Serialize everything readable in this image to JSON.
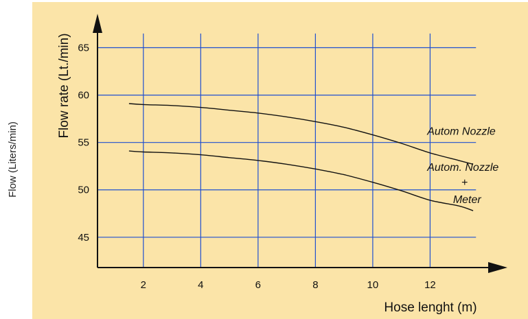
{
  "outer_ylabel": "Flow (Liters/min)",
  "chart_data": {
    "type": "line",
    "xlabel": "Hose lenght (m)",
    "ylabel": "Flow rate (Lt./min)",
    "xlim": [
      0.4,
      14.6
    ],
    "ylim": [
      41.8,
      67.5
    ],
    "x_ticks": [
      2,
      4,
      6,
      8,
      10,
      12
    ],
    "y_ticks": [
      45,
      50,
      55,
      60,
      65
    ],
    "grid": true,
    "grid_color": "#1f4fd0",
    "line_color": "#111111",
    "background": "#fbe4a8",
    "series": [
      {
        "x": [
          1.5,
          2,
          3,
          4,
          5,
          6,
          7,
          8,
          9,
          10,
          11,
          12,
          13,
          13.5
        ],
        "y": [
          59.1,
          59.0,
          58.9,
          58.7,
          58.4,
          58.1,
          57.7,
          57.2,
          56.6,
          55.8,
          54.9,
          53.9,
          53.1,
          52.7
        ]
      },
      {
        "x": [
          1.5,
          2,
          3,
          4,
          5,
          6,
          7,
          8,
          9,
          10,
          11,
          12,
          13,
          13.5
        ],
        "y": [
          54.1,
          54.0,
          53.9,
          53.7,
          53.4,
          53.1,
          52.7,
          52.2,
          51.6,
          50.8,
          49.9,
          48.9,
          48.3,
          47.8
        ]
      }
    ],
    "annotations": [
      {
        "text": "Autom Nozzle",
        "x": 11.9,
        "y": 55.8,
        "anchor": "start"
      },
      {
        "text": "Autom. Nozzle",
        "x": 11.9,
        "y": 52.0,
        "anchor": "start"
      },
      {
        "text": "+",
        "x": 13.2,
        "y": 50.4,
        "anchor": "middle"
      },
      {
        "text": "Meter",
        "x": 12.8,
        "y": 48.6,
        "anchor": "start"
      }
    ]
  }
}
